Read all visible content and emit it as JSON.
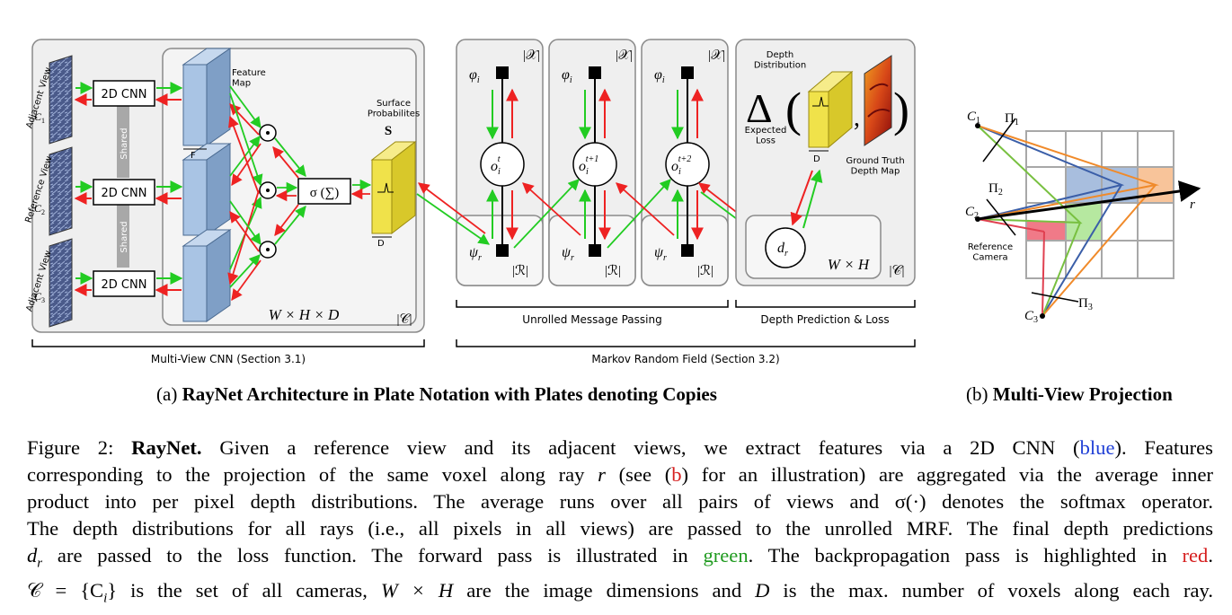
{
  "figure": {
    "plate_multiview": {
      "labels": {
        "adjacent_view_1": "Adjacent View",
        "c1": "C",
        "c1_sub": "1",
        "reference_view": "Reference View",
        "c2": "C",
        "c2_sub": "2",
        "adjacent_view_2": "Adjacent View",
        "c3": "C",
        "c3_sub": "3",
        "cnn": "2D CNN",
        "shared": "Shared",
        "feature_map": "Feature\nMap",
        "f_label": "F",
        "sigma_sum": "σ (∑)",
        "surface_probabilities": "Surface\nProbabilites",
        "s_label": "S",
        "d_label": "D",
        "whd": "W × H × D",
        "plate_c": "|𝒞|",
        "section": "Multi-View CNN (Section 3.1)"
      }
    },
    "plate_mrf": {
      "phi": "φ",
      "phi_sub": "i",
      "plate_x": "|𝒳|",
      "o_main": "o",
      "o_sub": "i",
      "o_sup": [
        "t",
        "t+1",
        "t+2"
      ],
      "psi": "ψ",
      "psi_sub": "r",
      "plate_r": "|ℛ|",
      "unrolled": "Unrolled Message Passing",
      "section": "Markov Random Field (Section 3.2)"
    },
    "plate_depth": {
      "depth_distribution": "Depth\nDistribution",
      "delta": "Δ",
      "expected_loss": "Expected\nLoss",
      "d_label": "D",
      "ground_truth": "Ground Truth\nDepth Map",
      "d_r": "d",
      "d_r_sub": "r",
      "wh": "W × H",
      "plate_c": "|𝒞|",
      "section": "Depth Prediction & Loss"
    },
    "projection": {
      "c1": "C",
      "c1_sub": "1",
      "pi1": "Π",
      "pi1_sub": "1",
      "c2": "C",
      "c2_sub": "2",
      "pi2": "Π",
      "pi2_sub": "2",
      "c3": "C",
      "c3_sub": "3",
      "pi3": "Π",
      "pi3_sub": "3",
      "r": "r",
      "reference_camera": "Reference\nCamera"
    }
  },
  "subcaptions": {
    "a_prefix": "(a) ",
    "a_bold": "RayNet Architecture in Plate Notation with Plates denoting Copies",
    "b_prefix": "(b) ",
    "b_bold": "Multi-View Projection"
  },
  "caption": {
    "l1_a": "Figure 2: ",
    "l1_bold": "RayNet.",
    "l1_b": "  Given a reference view and its adjacent views, we extract features via a 2D CNN (",
    "l1_blue": "blue",
    "l1_c": ").  Features",
    "l2_a": "corresponding to the projection of the same voxel along ray ",
    "l2_r": "r",
    "l2_b": " (see (",
    "l2_red": "b",
    "l2_c": ") for an illustration) are aggregated via the average inner",
    "l3": "product into per pixel depth distributions. The average runs over all pairs of views and σ(·) denotes the softmax operator.",
    "l4": "The depth distributions for all rays (i.e., all pixels in all views) are passed to the unrolled MRF. The final depth predictions",
    "l5_dr": "d",
    "l5_dr_sub": "r",
    "l5_a": " are passed to the loss function. The forward pass is illustrated in ",
    "l5_green": "green",
    "l5_b": ". The backpropagation pass is highlighted in ",
    "l5_red": "red",
    "l5_c": ".",
    "l6_a": "𝒞 = {C",
    "l6_sub": "i",
    "l6_b": "} is the set of all cameras, ",
    "l6_wh": "W × H",
    "l6_c": " are the image dimensions and ",
    "l6_d": "D",
    "l6_e": " is the max. number of voxels along each ray."
  },
  "colors": {
    "forward": "#22cc22",
    "backward": "#ee2222",
    "feature": "#a9c4e4",
    "surface": "#f0e24a",
    "shared": "#a8a8a8",
    "plate": "#efefef"
  }
}
